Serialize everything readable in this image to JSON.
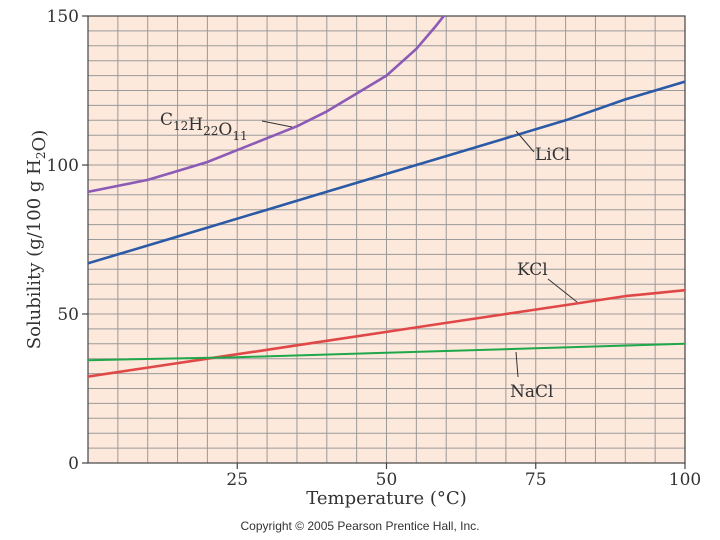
{
  "chart_data": {
    "type": "line",
    "title": "",
    "xlabel": "Temperature (°C)",
    "ylabel": "Solubility (g/100 g H2O)",
    "xlim": [
      0,
      100
    ],
    "ylim": [
      0,
      150
    ],
    "xticks": [
      25,
      50,
      75,
      100
    ],
    "yticks": [
      0,
      50,
      100,
      150
    ],
    "x_tick_labels": [
      "25",
      "50",
      "75",
      "100"
    ],
    "y_tick_labels": [
      "0",
      "50",
      "100",
      "150"
    ],
    "origin_label": "0",
    "grid": true,
    "background": "#fde8dc",
    "series": [
      {
        "name": "C12H22O11",
        "label_parts": [
          {
            "text": "C",
            "sub": false
          },
          {
            "text": "12",
            "sub": true
          },
          {
            "text": "H",
            "sub": false
          },
          {
            "text": "22",
            "sub": true
          },
          {
            "text": "O",
            "sub": false
          },
          {
            "text": "11",
            "sub": true
          }
        ],
        "color": "#8b5bb5",
        "x": [
          0,
          5,
          10,
          15,
          20,
          25,
          30,
          35,
          40,
          45,
          50,
          55,
          58,
          60
        ],
        "y": [
          91,
          93,
          95,
          98,
          101,
          105,
          109,
          113,
          118,
          124,
          130,
          139,
          146,
          151
        ]
      },
      {
        "name": "LiCl",
        "color": "#2b5aa6",
        "x": [
          0,
          10,
          20,
          30,
          40,
          50,
          60,
          70,
          80,
          90,
          100
        ],
        "y": [
          67,
          73,
          79,
          85,
          91,
          97,
          103,
          109,
          115,
          122,
          128
        ]
      },
      {
        "name": "KCl",
        "color": "#e04848",
        "x": [
          0,
          10,
          20,
          30,
          40,
          50,
          60,
          70,
          80,
          90,
          100
        ],
        "y": [
          29,
          32,
          35,
          38,
          41,
          44,
          47,
          50,
          53,
          56,
          58
        ]
      },
      {
        "name": "NaCl",
        "color": "#1fa84a",
        "x": [
          0,
          25,
          50,
          75,
          100
        ],
        "y": [
          34.5,
          35.5,
          37,
          38.5,
          40
        ]
      }
    ]
  },
  "ylabel_parts": [
    {
      "text": "Solubility (g/100 g H",
      "sub": false
    },
    {
      "text": "2",
      "sub": true
    },
    {
      "text": "O)",
      "sub": false
    }
  ],
  "copyright": "Copyright © 2005 Pearson Prentice Hall, Inc."
}
